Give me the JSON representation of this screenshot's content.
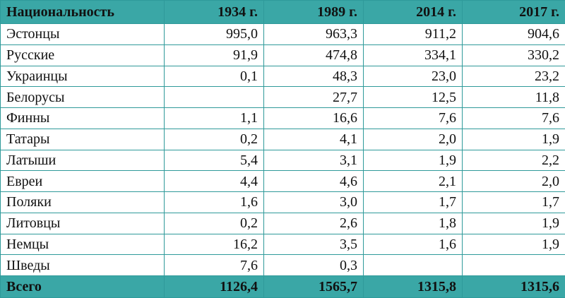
{
  "table": {
    "headers": [
      "Национальность",
      "1934 г.",
      "1989 г.",
      "2014 г.",
      "2017 г."
    ],
    "rows": [
      {
        "name": "Эстонцы",
        "values": [
          "995,0",
          "963,3",
          "911,2",
          "904,6"
        ]
      },
      {
        "name": "Русские",
        "values": [
          "91,9",
          "474,8",
          "334,1",
          "330,2"
        ]
      },
      {
        "name": "Украинцы",
        "values": [
          "0,1",
          "48,3",
          "23,0",
          "23,2"
        ]
      },
      {
        "name": "Белорусы",
        "values": [
          "",
          "27,7",
          "12,5",
          "11,8"
        ]
      },
      {
        "name": "Финны",
        "values": [
          "1,1",
          "16,6",
          "7,6",
          "7,6"
        ]
      },
      {
        "name": "Татары",
        "values": [
          "0,2",
          "4,1",
          "2,0",
          "1,9"
        ]
      },
      {
        "name": "Латыши",
        "values": [
          "5,4",
          "3,1",
          "1,9",
          "2,2"
        ]
      },
      {
        "name": "Евреи",
        "values": [
          "4,4",
          "4,6",
          "2,1",
          "2,0"
        ]
      },
      {
        "name": "Поляки",
        "values": [
          "1,6",
          "3,0",
          "1,7",
          "1,7"
        ]
      },
      {
        "name": "Литовцы",
        "values": [
          "0,2",
          "2,6",
          "1,8",
          "1,9"
        ]
      },
      {
        "name": "Немцы",
        "values": [
          "16,2",
          "3,5",
          "1,6",
          "1,9"
        ]
      },
      {
        "name": "Шведы",
        "values": [
          "7,6",
          "0,3",
          "",
          ""
        ]
      }
    ],
    "total": {
      "name": "Всего",
      "values": [
        "1126,4",
        "1565,7",
        "1315,8",
        "1315,6"
      ]
    }
  },
  "colors": {
    "header_bg": "#3aa7a6",
    "border": "#2f9a9a"
  }
}
